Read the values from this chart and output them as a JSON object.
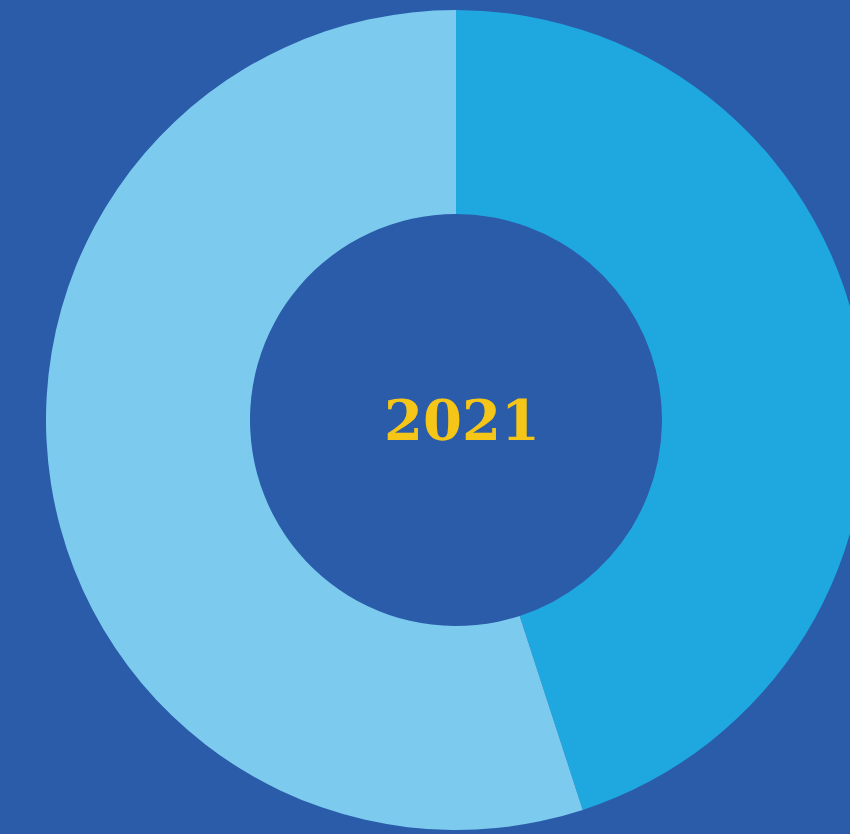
{
  "chart_data": {
    "type": "donut",
    "title": "2021",
    "categories": [
      null,
      null
    ],
    "values": [
      45,
      55
    ],
    "colors": [
      "#1fa8e0",
      "#7ccbef"
    ]
  }
}
